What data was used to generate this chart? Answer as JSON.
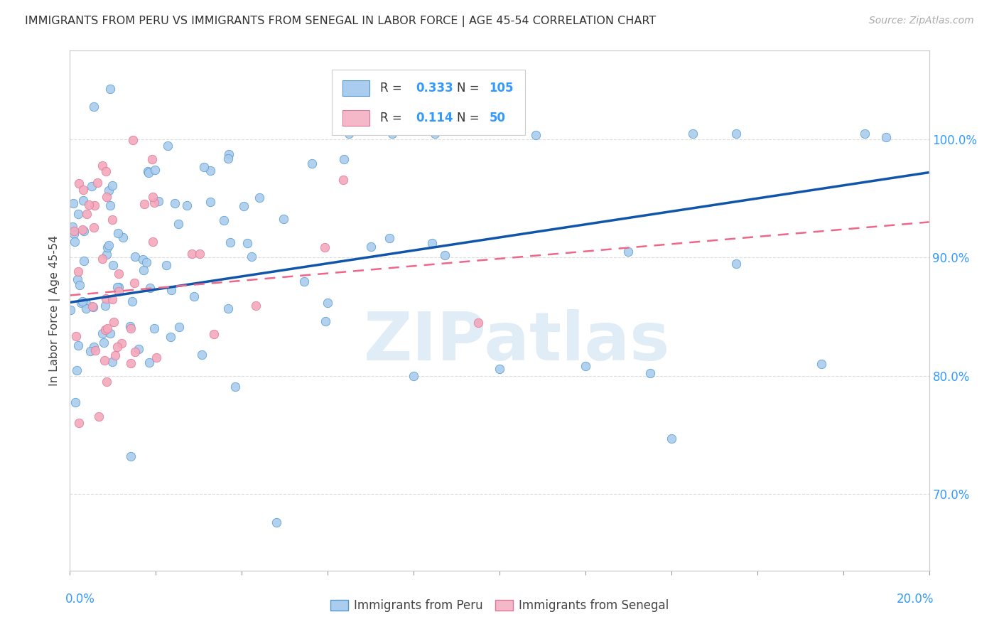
{
  "title": "IMMIGRANTS FROM PERU VS IMMIGRANTS FROM SENEGAL IN LABOR FORCE | AGE 45-54 CORRELATION CHART",
  "source": "Source: ZipAtlas.com",
  "ylabel": "In Labor Force | Age 45-54",
  "xmin": 0.0,
  "xmax": 0.2,
  "ymin": 0.635,
  "ymax": 1.075,
  "peru_R": 0.333,
  "peru_N": 105,
  "senegal_R": 0.114,
  "senegal_N": 50,
  "peru_color": "#aaccee",
  "senegal_color": "#f4a8bc",
  "peru_edge_color": "#5599cc",
  "senegal_edge_color": "#dd7799",
  "peru_line_color": "#1155aa",
  "senegal_line_color": "#ee6688",
  "background_color": "#ffffff",
  "grid_color": "#dddddd",
  "watermark_text": "ZIPatlas",
  "watermark_color": "#c8dff0",
  "legend_box_color_peru": "#aaccee",
  "legend_box_color_senegal": "#f4b8c8",
  "peru_line_x0": 0.0,
  "peru_line_y0": 0.862,
  "peru_line_x1": 0.2,
  "peru_line_y1": 0.972,
  "senegal_line_x0": 0.0,
  "senegal_line_y0": 0.868,
  "senegal_line_x1": 0.2,
  "senegal_line_y1": 0.93,
  "right_yticks": [
    0.7,
    0.8,
    0.9,
    1.0
  ],
  "right_ytick_labels": [
    "70.0%",
    "80.0%",
    "90.0%",
    "100.0%"
  ]
}
